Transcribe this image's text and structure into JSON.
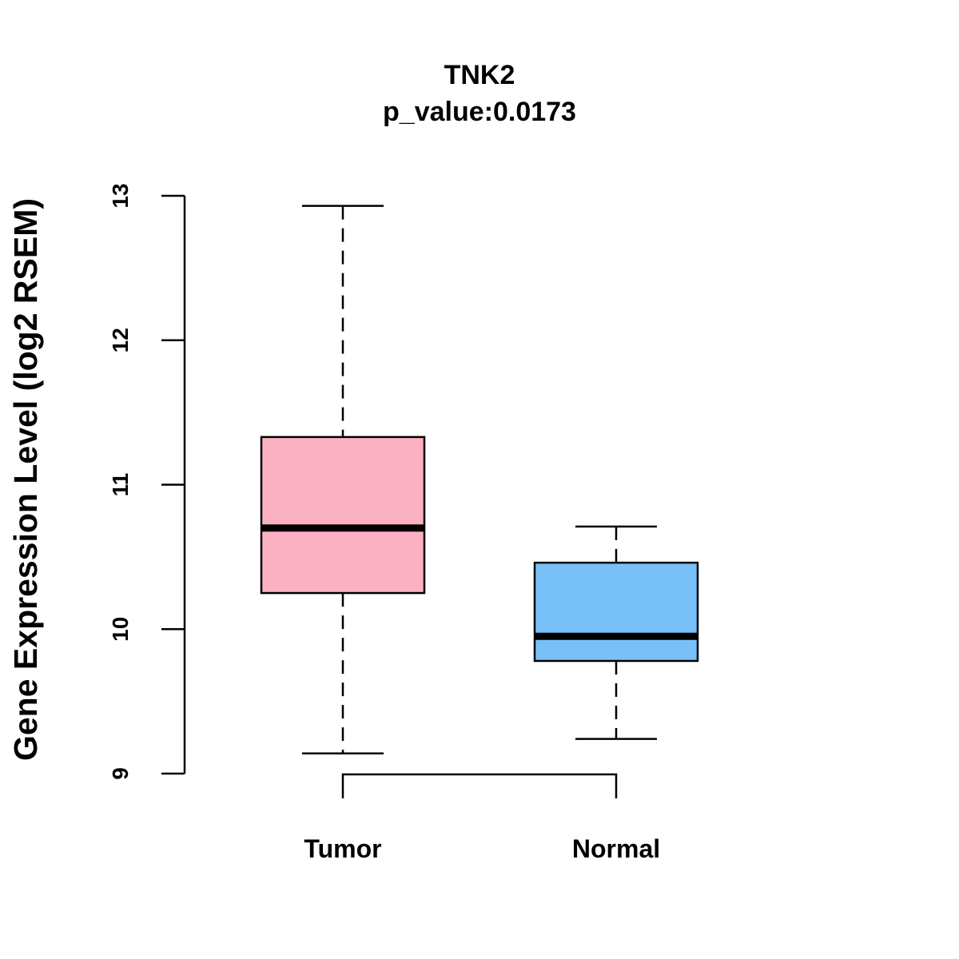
{
  "chart_data": {
    "type": "boxplot",
    "title": "TNK2",
    "subtitle": "p_value:0.0173",
    "ylabel": "Gene Expression Level (log2 RSEM)",
    "xlabel": "",
    "ylim": [
      9,
      13
    ],
    "yticks": [
      9,
      10,
      11,
      12,
      13
    ],
    "grid": false,
    "categories": [
      "Tumor",
      "Normal"
    ],
    "boxes": [
      {
        "name": "Tumor",
        "whisker_low": 9.14,
        "q1": 10.25,
        "median": 10.7,
        "q3": 11.33,
        "whisker_high": 12.93,
        "color": "#FCB1C3"
      },
      {
        "name": "Normal",
        "whisker_low": 9.24,
        "q1": 9.78,
        "median": 9.95,
        "q3": 10.46,
        "whisker_high": 10.71,
        "color": "#78C1F8"
      }
    ],
    "comparison_bracket": [
      "Tumor",
      "Normal"
    ]
  }
}
